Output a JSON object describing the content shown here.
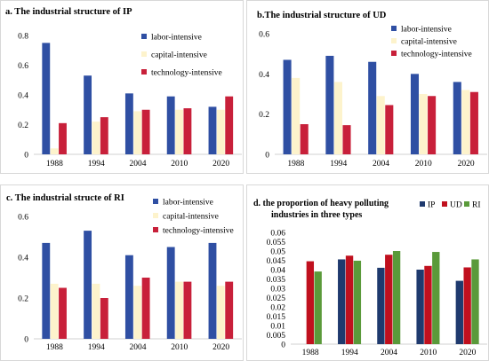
{
  "charts": [
    {
      "chart_data": {
        "type": "bar",
        "title": "a. The industrial structure of IP",
        "categories": [
          "1988",
          "1994",
          "2004",
          "2010",
          "2020"
        ],
        "ylim": [
          0,
          0.8
        ],
        "yticks": [
          "0",
          "0.2",
          "0.4",
          "0.6",
          "0.8"
        ],
        "ytick_values": [
          0,
          0.2,
          0.4,
          0.6,
          0.8
        ],
        "grid": false,
        "legend_position": "top-right",
        "series": [
          {
            "name": "labor-intensive",
            "color": "#2f4fa3",
            "values": [
              0.75,
              0.53,
              0.41,
              0.39,
              0.32
            ]
          },
          {
            "name": "capital-intensive",
            "color": "#fdf3cc",
            "values": [
              0.04,
              0.22,
              0.29,
              0.3,
              0.3
            ]
          },
          {
            "name": "technology-intensive",
            "color": "#c8203a",
            "values": [
              0.21,
              0.25,
              0.3,
              0.31,
              0.39
            ]
          }
        ]
      }
    },
    {
      "chart_data": {
        "type": "bar",
        "title": "b.The industrial structure of UD",
        "categories": [
          "1988",
          "1994",
          "2004",
          "2010",
          "2020"
        ],
        "ylim": [
          0,
          0.6
        ],
        "yticks": [
          "0",
          "0.2",
          "0.4",
          "0.6"
        ],
        "ytick_values": [
          0,
          0.2,
          0.4,
          0.6
        ],
        "grid": false,
        "legend_position": "top-right",
        "series": [
          {
            "name": "labor-intensive",
            "color": "#2f4fa3",
            "values": [
              0.47,
              0.49,
              0.46,
              0.4,
              0.36
            ]
          },
          {
            "name": "capital-intensive",
            "color": "#fdf3cc",
            "values": [
              0.38,
              0.36,
              0.29,
              0.3,
              0.32
            ]
          },
          {
            "name": "technology-intensive",
            "color": "#c8203a",
            "values": [
              0.15,
              0.145,
              0.245,
              0.29,
              0.31
            ]
          }
        ]
      }
    },
    {
      "chart_data": {
        "type": "bar",
        "title": "c. The industrial structe of RI",
        "categories": [
          "1988",
          "1994",
          "2004",
          "2010",
          "2020"
        ],
        "ylim": [
          0,
          0.6
        ],
        "yticks": [
          "0",
          "0.2",
          "0.4",
          "0.6"
        ],
        "ytick_values": [
          0,
          0.2,
          0.4,
          0.6
        ],
        "grid": false,
        "legend_position": "top-right",
        "series": [
          {
            "name": "labor-intensive",
            "color": "#2f4fa3",
            "values": [
              0.47,
              0.53,
              0.41,
              0.45,
              0.47
            ]
          },
          {
            "name": "capital-intensive",
            "color": "#fdf3cc",
            "values": [
              0.27,
              0.27,
              0.26,
              0.28,
              0.26
            ]
          },
          {
            "name": "technology-intensive",
            "color": "#c8203a",
            "values": [
              0.25,
              0.2,
              0.3,
              0.28,
              0.28
            ]
          }
        ]
      }
    },
    {
      "chart_data": {
        "type": "bar",
        "title": "d. the proportion of heavy polluting industries in three types",
        "title_lines": [
          "d. the proportion of  heavy polluting",
          "industries in three types"
        ],
        "categories": [
          "1988",
          "1994",
          "2004",
          "2010",
          "2020"
        ],
        "ylim": [
          0,
          0.06
        ],
        "yticks": [
          "0",
          "0.005",
          "0.01",
          "0.015",
          "0.02",
          "0.025",
          "0.03",
          "0.035",
          "0.04",
          "0.045",
          "0.05",
          "0.055",
          "0.06"
        ],
        "ytick_values": [
          0,
          0.005,
          0.01,
          0.015,
          0.02,
          0.025,
          0.03,
          0.035,
          0.04,
          0.045,
          0.05,
          0.055,
          0.06
        ],
        "grid": false,
        "legend_position": "top-right",
        "series": [
          {
            "name": "IP",
            "color": "#1f3a6e",
            "values": [
              0,
              0.0455,
              0.041,
              0.04,
              0.034
            ]
          },
          {
            "name": "UD",
            "color": "#c0101e",
            "values": [
              0.0445,
              0.0475,
              0.048,
              0.042,
              0.0412
            ]
          },
          {
            "name": "RI",
            "color": "#5a9a3a",
            "values": [
              0.039,
              0.0448,
              0.05,
              0.0495,
              0.0455
            ]
          }
        ]
      }
    }
  ]
}
